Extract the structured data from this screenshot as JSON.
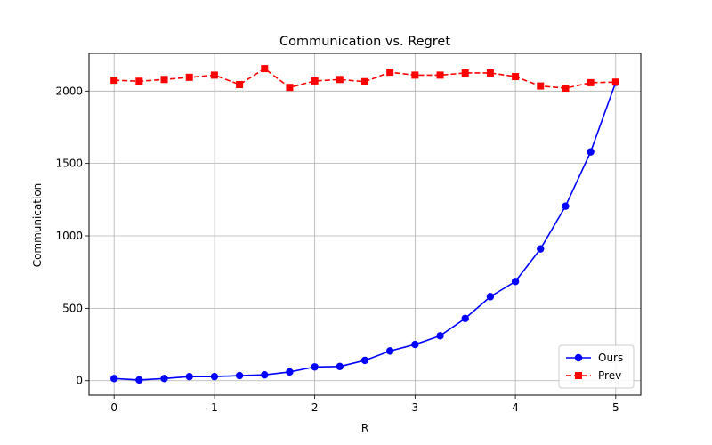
{
  "chart_data": {
    "type": "line",
    "title": "Communication vs. Regret",
    "xlabel": "R",
    "ylabel": "Communication",
    "xlim": [
      -0.25,
      5.25
    ],
    "ylim": [
      -100,
      2260
    ],
    "xticks": [
      0,
      1,
      2,
      3,
      4,
      5
    ],
    "yticks": [
      0,
      500,
      1000,
      1500,
      2000
    ],
    "grid": true,
    "legend_position": "bottom-right",
    "x": [
      0,
      0.25,
      0.5,
      0.75,
      1,
      1.25,
      1.5,
      1.75,
      2,
      2.25,
      2.5,
      2.75,
      3,
      3.25,
      3.5,
      3.75,
      4,
      4.25,
      4.5,
      4.75,
      5
    ],
    "series": [
      {
        "name": "Ours",
        "color": "#0000ff",
        "line_style": "solid",
        "marker": "circle",
        "values": [
          15,
          5,
          15,
          28,
          28,
          35,
          40,
          60,
          95,
          98,
          140,
          205,
          250,
          310,
          430,
          580,
          685,
          910,
          1205,
          1580,
          2060
        ]
      },
      {
        "name": "Prev",
        "color": "#ff0000",
        "line_style": "dashed",
        "marker": "square",
        "values": [
          2075,
          2068,
          2080,
          2095,
          2110,
          2045,
          2155,
          2025,
          2070,
          2080,
          2065,
          2130,
          2110,
          2110,
          2125,
          2125,
          2100,
          2035,
          2020,
          2058,
          2062
        ]
      }
    ]
  }
}
